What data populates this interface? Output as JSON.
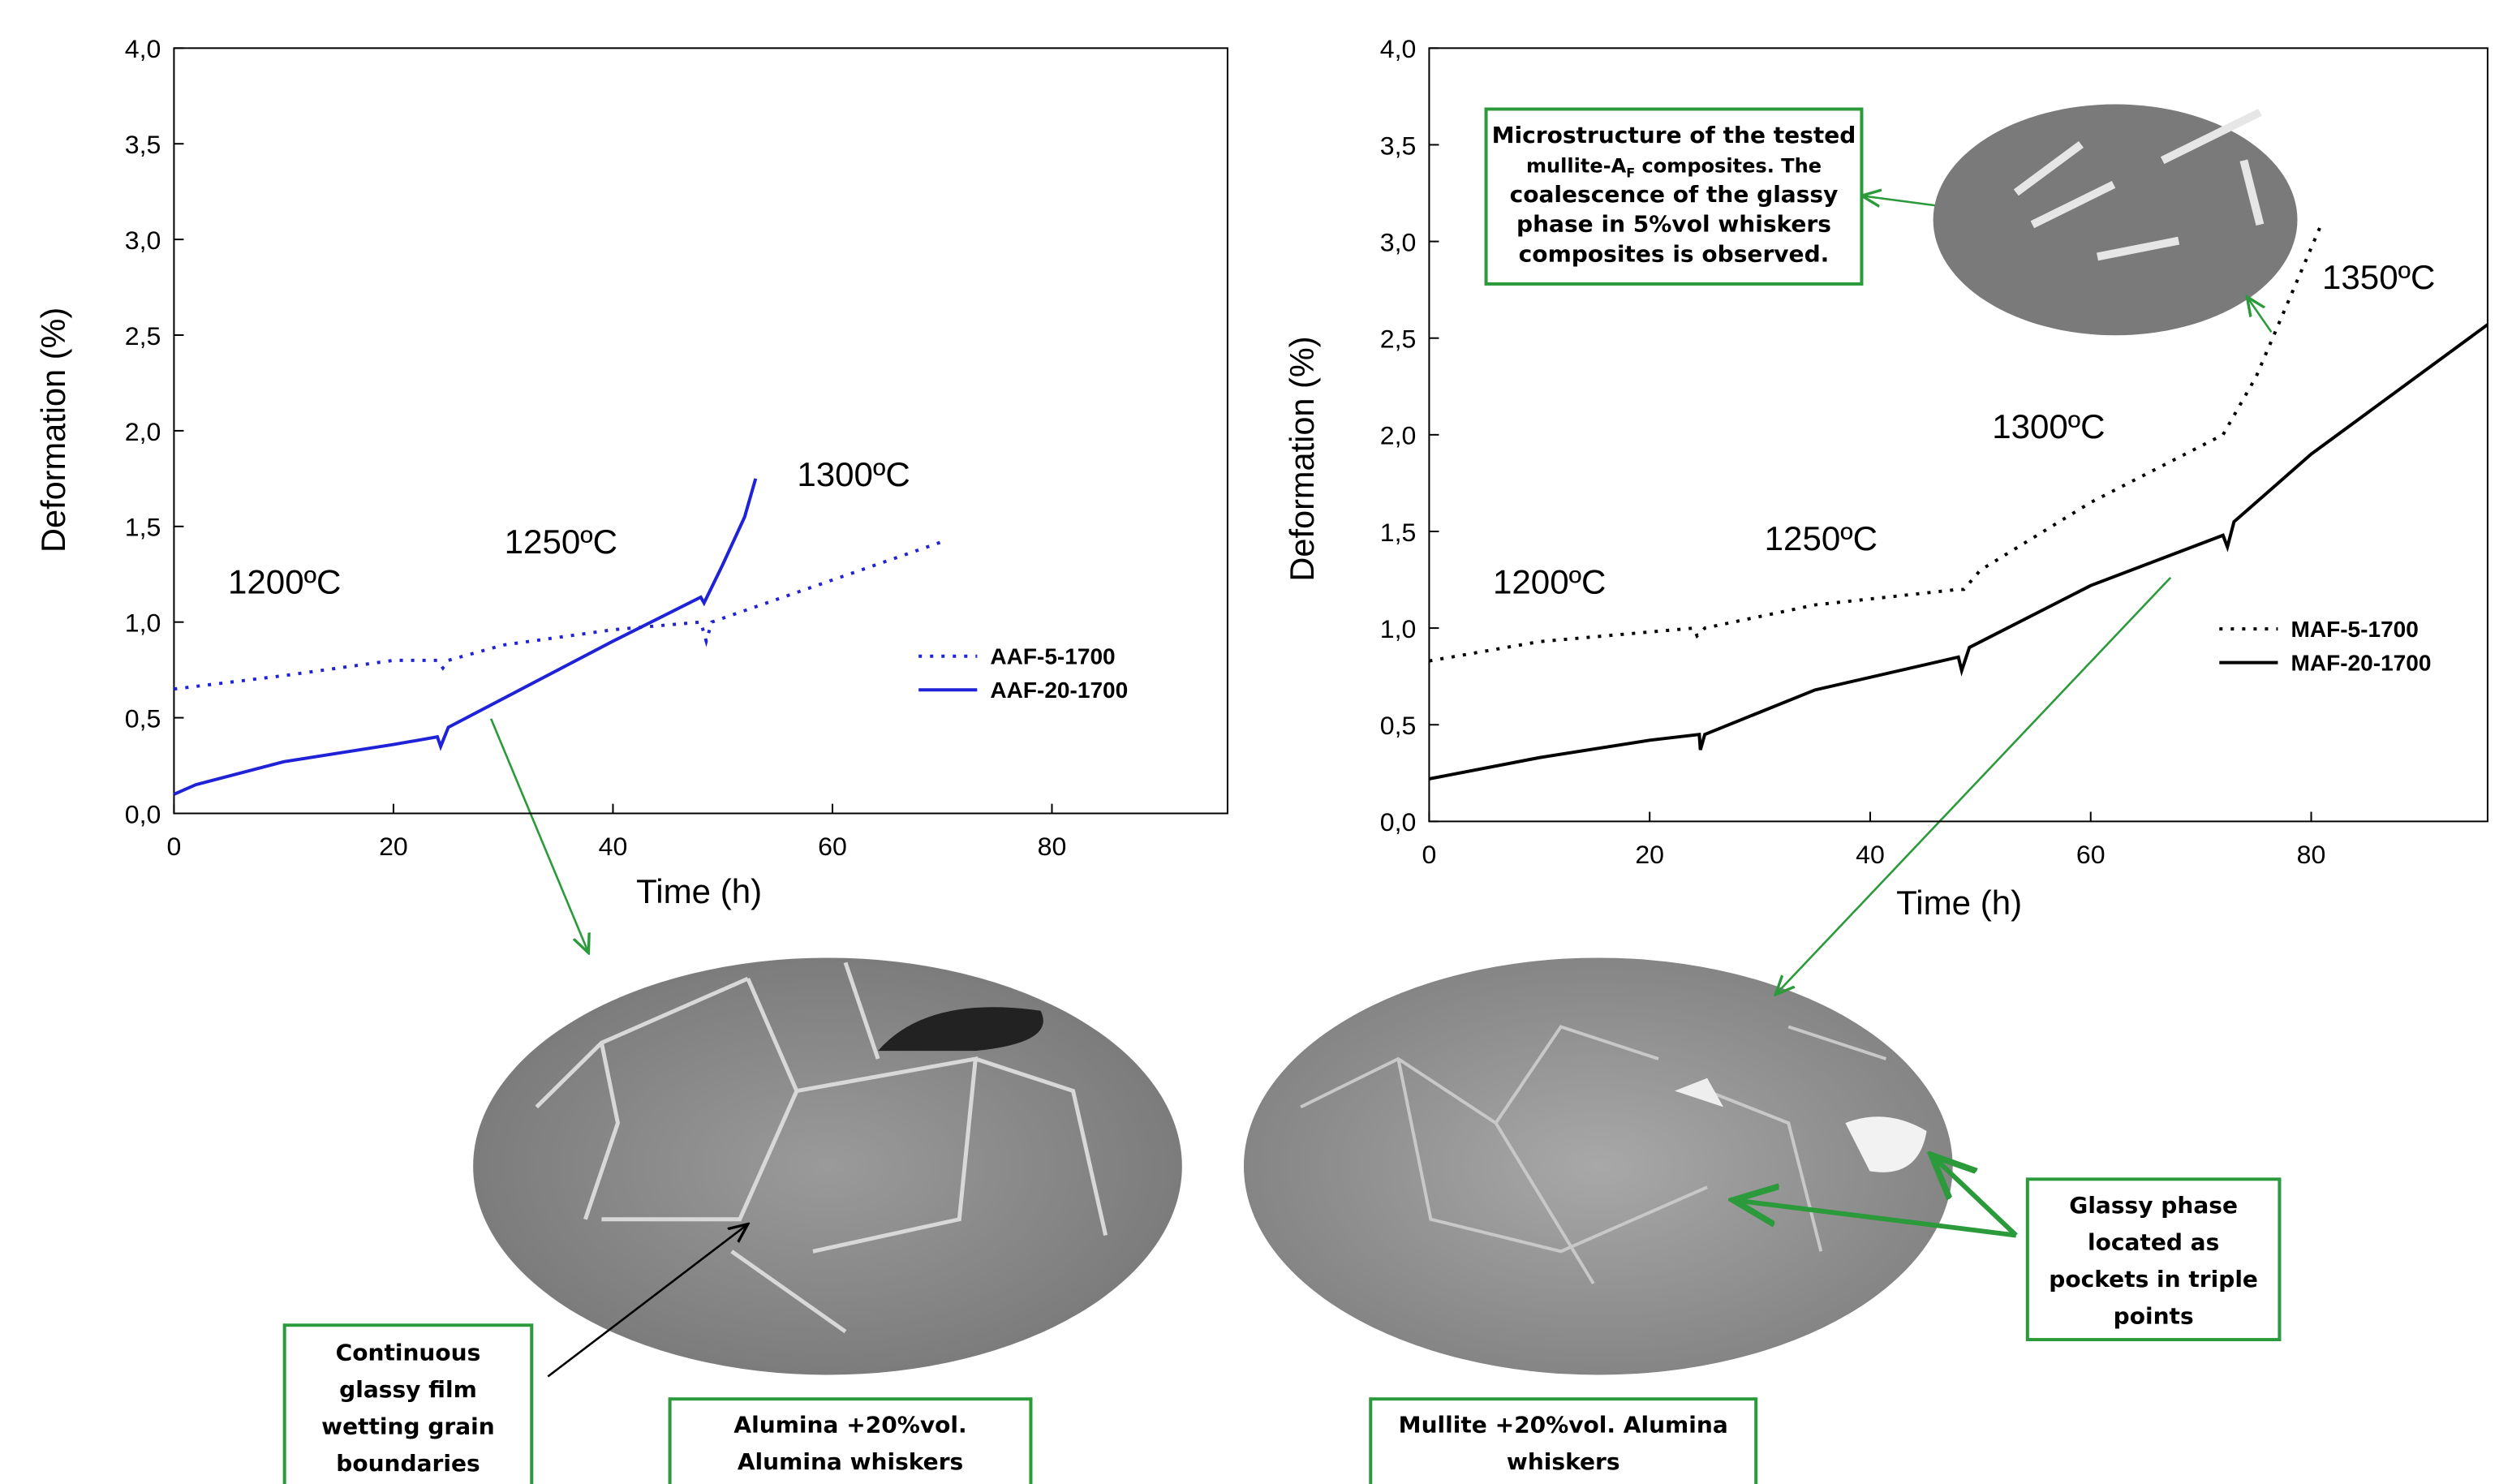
{
  "chart_data": [
    {
      "type": "line",
      "x_label": "Time (h)",
      "y_label": "Deformation (%)",
      "xlim": [
        0,
        96
      ],
      "ylim": [
        0,
        4
      ],
      "xticks": [
        0,
        20,
        40,
        60,
        80
      ],
      "yticks": [
        {
          "value": 0,
          "label": "0,0"
        },
        {
          "value": 0.5,
          "label": "0,5"
        },
        {
          "value": 1,
          "label": "1,0"
        },
        {
          "value": 1.5,
          "label": "1,5"
        },
        {
          "value": 2,
          "label": "2,0"
        },
        {
          "value": 2.5,
          "label": "2,5"
        },
        {
          "value": 3,
          "label": "3,0"
        },
        {
          "value": 3.5,
          "label": "3,5"
        },
        {
          "value": 4,
          "label": "4,0"
        }
      ],
      "annotations": [
        "1200ºC",
        "1250ºC",
        "1300ºC"
      ],
      "series": [
        {
          "name": "AAF-5-1700",
          "color": "#1f22d6",
          "dash": "dotted",
          "x": [
            0,
            10,
            20,
            24,
            24.5,
            25,
            30,
            40,
            48,
            48.5,
            49,
            60,
            70
          ],
          "values": [
            0.65,
            0.72,
            0.8,
            0.8,
            0.76,
            0.8,
            0.88,
            0.96,
            1.0,
            0.9,
            1.0,
            1.22,
            1.42
          ]
        },
        {
          "name": "AAF-20-1700",
          "color": "#1f22d6",
          "dash": "solid",
          "x": [
            0,
            2,
            10,
            20,
            24,
            24.3,
            25,
            30,
            40,
            48,
            48.3,
            50,
            52,
            53
          ],
          "values": [
            0.1,
            0.15,
            0.27,
            0.36,
            0.4,
            0.35,
            0.45,
            0.6,
            0.9,
            1.13,
            1.1,
            1.3,
            1.55,
            1.75
          ]
        }
      ]
    },
    {
      "type": "line",
      "x_label": "Time (h)",
      "y_label": "Deformation (%)",
      "xlim": [
        0,
        96
      ],
      "ylim": [
        0,
        4
      ],
      "xticks": [
        0,
        20,
        40,
        60,
        80
      ],
      "yticks": [
        {
          "value": 0,
          "label": "0,0"
        },
        {
          "value": 0.5,
          "label": "0,5"
        },
        {
          "value": 1,
          "label": "1,0"
        },
        {
          "value": 1.5,
          "label": "1,5"
        },
        {
          "value": 2,
          "label": "2,0"
        },
        {
          "value": 2.5,
          "label": "2,5"
        },
        {
          "value": 3,
          "label": "3,0"
        },
        {
          "value": 3.5,
          "label": "3,5"
        },
        {
          "value": 4,
          "label": "4,0"
        }
      ],
      "annotations": [
        "1200ºC",
        "1250ºC",
        "1300ºC",
        "1350ºC"
      ],
      "series": [
        {
          "name": "MAF-5-1700",
          "color": "#000000",
          "dash": "dotted",
          "x": [
            0,
            10,
            20,
            24,
            24.3,
            25,
            35,
            48,
            48.5,
            50,
            60,
            72,
            75,
            78,
            81
          ],
          "values": [
            0.83,
            0.93,
            0.98,
            1.0,
            0.96,
            1.0,
            1.12,
            1.2,
            1.2,
            1.3,
            1.65,
            2.0,
            2.3,
            2.7,
            3.1
          ]
        },
        {
          "name": "MAF-20-1700",
          "color": "#000000",
          "dash": "solid",
          "x": [
            0,
            10,
            20,
            24.5,
            24.6,
            25,
            35,
            48,
            48.3,
            49,
            60,
            72,
            72.4,
            73,
            80,
            96
          ],
          "values": [
            0.22,
            0.33,
            0.42,
            0.45,
            0.37,
            0.45,
            0.68,
            0.85,
            0.78,
            0.9,
            1.22,
            1.48,
            1.42,
            1.55,
            1.9,
            2.57
          ]
        }
      ]
    }
  ],
  "notes": {
    "microstructure": [
      "Microstructure of the  tested",
      [
        "mullite-A",
        "F",
        " composites. The"
      ],
      "coalescence of the glassy",
      "phase in 5%vol whiskers",
      "composites is observed."
    ],
    "glassy_film": [
      "Continuous",
      "glassy film",
      "wetting grain",
      "boundaries"
    ],
    "alumina_caption": [
      "Alumina +20%vol.",
      "Alumina whiskers"
    ],
    "mullite_caption": [
      "Mullite +20%vol. Alumina",
      "whiskers"
    ],
    "glassy_pockets": [
      "Glassy phase",
      "located as",
      "pockets in triple",
      "points"
    ]
  }
}
